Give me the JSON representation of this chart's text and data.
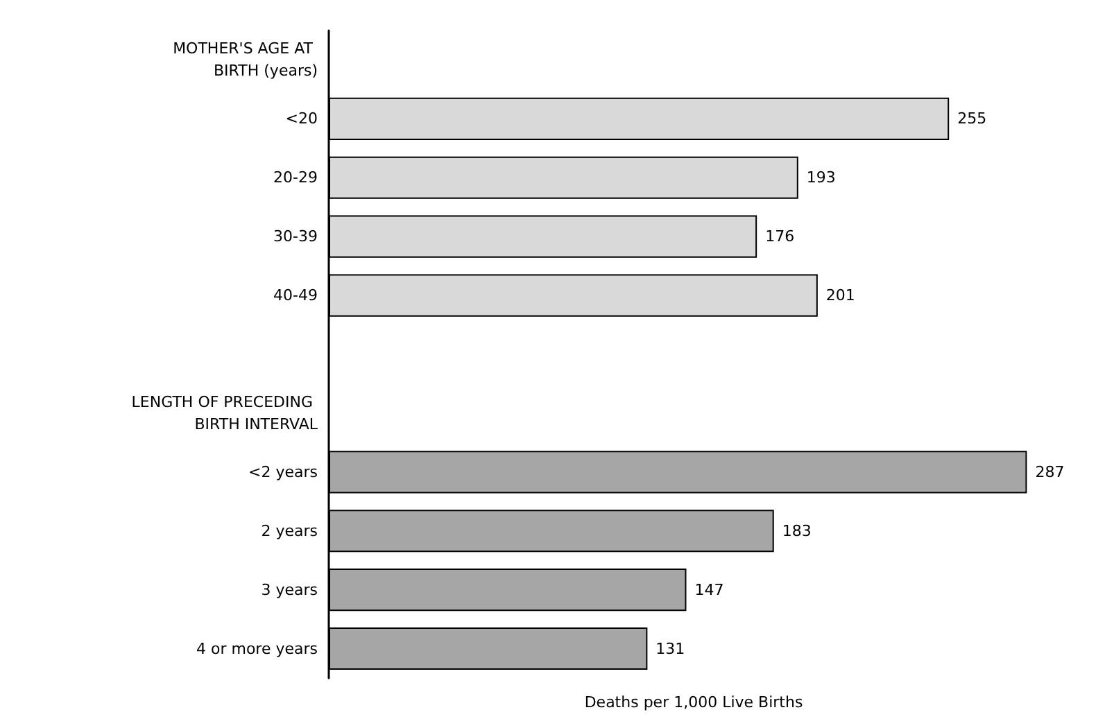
{
  "chart_data": {
    "type": "bar",
    "orientation": "horizontal",
    "xlabel": "Deaths per 1,000 Live Births",
    "categories": [
      "MOTHER'S AGE AT BIRTH (years)",
      "<20",
      "20-29",
      "30-39",
      "40-49",
      null,
      "LENGTH OF PRECEDING BIRTH INTERVAL",
      "<2 years",
      "2 years",
      "3 years",
      "4 or more years"
    ],
    "values": [
      null,
      255,
      193,
      176,
      201,
      null,
      null,
      287,
      183,
      147,
      131
    ],
    "colors": [
      "#d9d9d9",
      "#d9d9d9",
      "#d9d9d9",
      "#d9d9d9",
      "#d9d9d9",
      "#d9d9d9",
      "#a6a6a6",
      "#a6a6a6",
      "#a6a6a6",
      "#a6a6a6",
      "#a6a6a6"
    ],
    "data_labels": true,
    "tick_labels": "y"
  }
}
